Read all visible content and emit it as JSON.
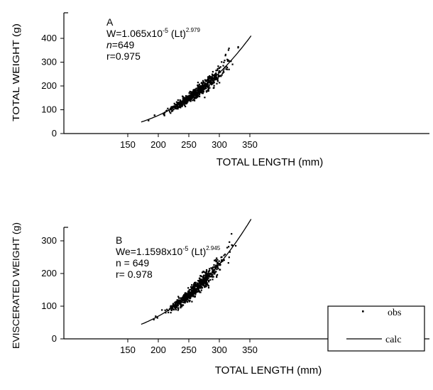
{
  "chart_data": [
    {
      "type": "scatter",
      "panel_label": "A",
      "annotation": {
        "equation_prefix": "W=1.065x10",
        "equation_exp1": "-5",
        "equation_mid": " (Lt)",
        "equation_exp2": "2.979",
        "n_symbol": "n",
        "n_text": "=649",
        "r_text": "r=0.975"
      },
      "xlabel": "TOTAL LENGTH (mm)",
      "ylabel": "TOTAL WEIGHT (g)",
      "xlim": [
        100,
        400
      ],
      "ylim": [
        0,
        450
      ],
      "xticks": [
        150,
        200,
        250,
        300,
        350
      ],
      "yticks": [
        0,
        100,
        200,
        300,
        400
      ],
      "model": {
        "a": 1.065e-05,
        "b": 2.979
      },
      "calc_range": [
        172,
        352
      ],
      "n": 649
    },
    {
      "type": "scatter",
      "panel_label": "B",
      "annotation": {
        "equation_prefix": "We=1.1598x10",
        "equation_exp1": "-5",
        "equation_mid": " (Lt)",
        "equation_exp2": "2.945",
        "n_text": "n = 649",
        "r_text": "r= 0.978"
      },
      "xlabel": "TOTAL LENGTH (mm)",
      "ylabel": "EVISCERATED WEIGHT (g)",
      "xlim": [
        100,
        400
      ],
      "ylim": [
        0,
        400
      ],
      "xticks": [
        150,
        200,
        250,
        300,
        350
      ],
      "yticks": [
        0,
        100,
        200,
        300
      ],
      "model": {
        "a": 1.1598e-05,
        "b": 2.945
      },
      "calc_range": [
        172,
        352
      ],
      "n": 649,
      "legend": {
        "position": "bottom-right",
        "obs_label": "obs",
        "calc_label": "calc"
      }
    }
  ]
}
